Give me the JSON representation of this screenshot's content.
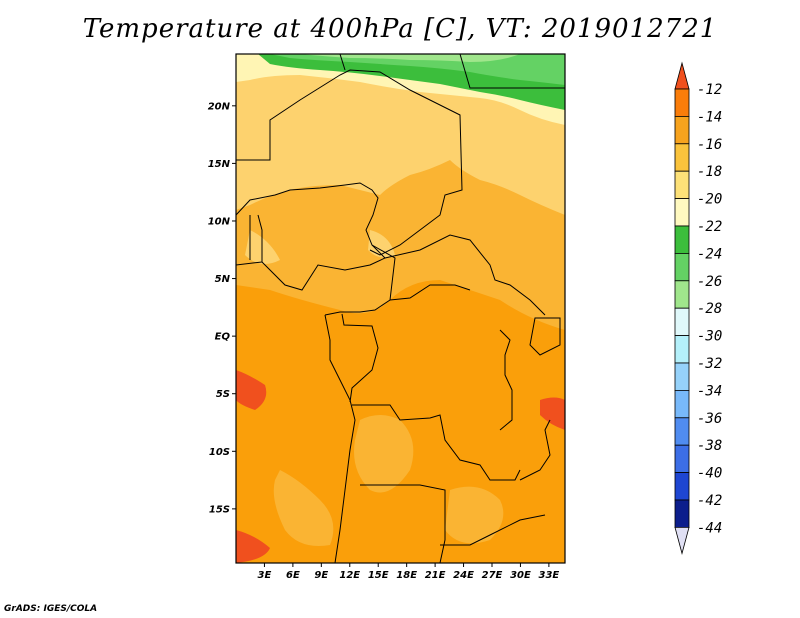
{
  "title": "Temperature at 400hPa [C], VT: 2019012721",
  "credit": "GrADS: IGES/COLA",
  "map": {
    "lon_range": [
      0,
      34.7
    ],
    "lat_range": [
      -19.7,
      24.5
    ],
    "lat_ticks": [
      {
        "value": 20,
        "label": "20N"
      },
      {
        "value": 15,
        "label": "15N"
      },
      {
        "value": 10,
        "label": "10N"
      },
      {
        "value": 5,
        "label": "5N"
      },
      {
        "value": 0,
        "label": "EQ"
      },
      {
        "value": -5,
        "label": "5S"
      },
      {
        "value": -10,
        "label": "10S"
      },
      {
        "value": -15,
        "label": "15S"
      }
    ],
    "lon_ticks": [
      {
        "value": 3,
        "label": "3E"
      },
      {
        "value": 6,
        "label": "6E"
      },
      {
        "value": 9,
        "label": "9E"
      },
      {
        "value": 12,
        "label": "12E"
      },
      {
        "value": 15,
        "label": "15E"
      },
      {
        "value": 18,
        "label": "18E"
      },
      {
        "value": 21,
        "label": "21E"
      },
      {
        "value": 24,
        "label": "24E"
      },
      {
        "value": 27,
        "label": "27E"
      },
      {
        "value": 30,
        "label": "30E"
      },
      {
        "value": 33,
        "label": "33E"
      }
    ]
  },
  "colorbar": {
    "labels": [
      "-12",
      "-14",
      "-16",
      "-18",
      "-20",
      "-22",
      "-24",
      "-26",
      "-28",
      "-30",
      "-32",
      "-34",
      "-36",
      "-38",
      "-40",
      "-42",
      "-44"
    ],
    "colors": [
      "#f0501e",
      "#fa7d0a",
      "#f7a31e",
      "#fac33c",
      "#fde178",
      "#fff9c0",
      "#3cbe3c",
      "#64d264",
      "#a0e68c",
      "#e0f8fa",
      "#b4f0fa",
      "#96d2fa",
      "#78b9fa",
      "#508cf0",
      "#3c6ee6",
      "#1e46d2",
      "#0c1e8c"
    ],
    "top_color": "#f0501e",
    "bottom_color": "#e0e0f4"
  }
}
